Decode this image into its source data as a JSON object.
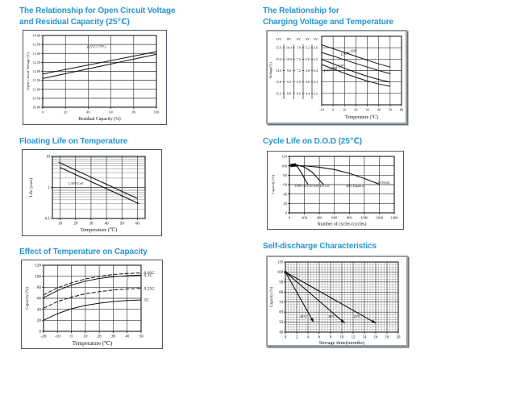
{
  "page": {
    "background": "#ffffff",
    "title_color": "#2695d3"
  },
  "panels": [
    {
      "title_lines": [
        "The Relationship for Open Circuit Voltage",
        "and Residual Capacity (25℃)"
      ]
    },
    {
      "title_lines": [
        "The Relationship for",
        "Charging Voltage and Temperature"
      ]
    },
    {
      "title_lines": [
        "Floating Life on Temperature"
      ]
    },
    {
      "title_lines": [
        "Cycle Life on D.O.D (25℃)"
      ]
    },
    {
      "title_lines": [
        "Effect of Temperature on Capacity"
      ]
    },
    {
      "title_lines": [
        "Self-discharge Characteristics"
      ]
    }
  ],
  "chart_data": [
    {
      "name": "open-circuit-voltage",
      "type": "line",
      "title": "The Relationship for Open Circuit Voltage and Residual Capacity (25℃)",
      "xlabel": "Residual Capacity (%)",
      "ylabel": "Open Circuit Voltage (V)",
      "xlim": [
        0,
        100
      ],
      "ylim": [
        10,
        14
      ],
      "grid": {
        "x_major": 20,
        "y_major": 0.5
      },
      "xticks": [
        {
          "v": 0,
          "l": "0"
        },
        {
          "v": 20,
          "l": "20"
        },
        {
          "v": 40,
          "l": "40"
        },
        {
          "v": 60,
          "l": "60"
        },
        {
          "v": 80,
          "l": "80"
        },
        {
          "v": 100,
          "l": "100"
        }
      ],
      "yticks": [
        {
          "v": 14,
          "l": "14.00"
        },
        {
          "v": 13.5,
          "l": "13.50"
        },
        {
          "v": 13,
          "l": "13.00"
        },
        {
          "v": 12.5,
          "l": "12.50"
        },
        {
          "v": 12,
          "l": "12.00"
        },
        {
          "v": 11.5,
          "l": "11.50"
        },
        {
          "v": 11,
          "l": "11.00"
        },
        {
          "v": 10.5,
          "l": "10.50"
        },
        {
          "v": 10,
          "l": "10.00"
        }
      ],
      "series": [
        {
          "name": "upper-line",
          "x": [
            0,
            100
          ],
          "y": [
            11.85,
            13.1
          ],
          "width": 1
        },
        {
          "name": "lower-line",
          "x": [
            0,
            100
          ],
          "y": [
            11.6,
            12.95
          ],
          "width": 1
        }
      ],
      "annotations": [
        {
          "text": "(25℃/77℉)",
          "x": 47,
          "y": 13.3,
          "size": 4.5
        }
      ]
    },
    {
      "name": "charging-voltage",
      "type": "line",
      "title": "The Relationship for Charging Voltage and Temperature",
      "xlabel": "Temperature (℃)",
      "ylabel": "Voltage(V)",
      "xlim": [
        -10,
        60
      ],
      "ylim": [
        2.1,
        2.7
      ],
      "grid": {
        "x_major": 10,
        "y_major": 0.1
      },
      "xticks": [
        {
          "v": -10,
          "l": "-10"
        },
        {
          "v": 0,
          "l": "0"
        },
        {
          "v": 10,
          "l": "10"
        },
        {
          "v": 20,
          "l": "20"
        },
        {
          "v": 30,
          "l": "30"
        },
        {
          "v": 40,
          "l": "40"
        },
        {
          "v": 50,
          "l": "50"
        },
        {
          "v": 60,
          "l": "60"
        }
      ],
      "yticks": [],
      "voltage_scales": {
        "headers": [
          "12V",
          "8V",
          "6V",
          "4V",
          "2V"
        ],
        "row_values": [
          2.6,
          2.5,
          2.4,
          2.3,
          2.2
        ],
        "rows": [
          [
            "15.6",
            "10.4",
            "7.8",
            "5.2",
            "2.6"
          ],
          [
            "15.0",
            "10.0",
            "7.5",
            "5.0",
            "2.5"
          ],
          [
            "14.4",
            "9.6",
            "7.2",
            "4.8",
            "2.4"
          ],
          [
            "13.8",
            "9.2",
            "6.9",
            "4.6",
            "2.3"
          ],
          [
            "13.2",
            "8.8",
            "6.6",
            "4.4",
            "2.2"
          ]
        ]
      },
      "series": [
        {
          "name": "cycle-use-upper",
          "x": [
            -10,
            0,
            10,
            20,
            30,
            40,
            50
          ],
          "y": [
            2.625,
            2.592,
            2.558,
            2.524,
            2.49,
            2.458,
            2.43
          ],
          "width": 1
        },
        {
          "name": "cycle-use-lower",
          "x": [
            -10,
            0,
            10,
            20,
            30,
            40,
            50
          ],
          "y": [
            2.558,
            2.527,
            2.494,
            2.462,
            2.43,
            2.4,
            2.372
          ],
          "width": 1
        },
        {
          "name": "floating-use-upper",
          "x": [
            -10,
            0,
            10,
            20,
            30,
            40,
            50
          ],
          "y": [
            2.497,
            2.46,
            2.42,
            2.383,
            2.35,
            2.322,
            2.3
          ],
          "width": 1
        },
        {
          "name": "floating-use-lower",
          "x": [
            -10,
            0,
            10,
            20,
            30,
            40,
            50
          ],
          "y": [
            2.452,
            2.415,
            2.376,
            2.34,
            2.308,
            2.282,
            2.262
          ],
          "width": 1
        }
      ],
      "annotations": [
        {
          "text": "Cycle Use",
          "x": 14,
          "y": 2.549,
          "rot": -18,
          "size": 5,
          "italic": true
        },
        {
          "text": "Floating Use",
          "x": 1,
          "y": 2.413,
          "rot": -19,
          "size": 5,
          "italic": true
        }
      ]
    },
    {
      "name": "floating-life",
      "type": "line",
      "title": "Floating Life on Temperature",
      "xlabel": "Temperature (℃)",
      "ylabel": "Life (years)",
      "xlim": [
        5,
        65
      ],
      "ylim": [
        0.1,
        10
      ],
      "yscale": "log",
      "grid": {
        "x_lines": [
          10,
          20,
          30,
          40,
          50,
          60
        ],
        "y_lines": [
          1
        ],
        "y_log_minor": [
          0.2,
          0.3,
          0.4,
          0.5,
          0.6,
          0.7,
          0.8,
          0.9,
          2,
          3,
          4,
          5,
          6,
          7,
          8,
          9
        ]
      },
      "xticks": [
        {
          "v": 10,
          "l": "10"
        },
        {
          "v": 20,
          "l": "20"
        },
        {
          "v": 30,
          "l": "30"
        },
        {
          "v": 40,
          "l": "40"
        },
        {
          "v": 50,
          "l": "50"
        },
        {
          "v": 60,
          "l": "60"
        }
      ],
      "yticks": [
        {
          "v": 10,
          "l": "10"
        },
        {
          "v": 1,
          "l": "1"
        },
        {
          "v": 0.1,
          "l": "0.1"
        }
      ],
      "series": [
        {
          "name": "band-upper",
          "x": [
            9,
            60
          ],
          "y": [
            6.5,
            0.44
          ],
          "width": 1.1
        },
        {
          "name": "band-lower",
          "x": [
            10,
            61
          ],
          "y": [
            4.4,
            0.3
          ],
          "width": 1.1
        }
      ],
      "annotations": [
        {
          "text": "2.30V/Cell",
          "x": 20,
          "y": 1.25,
          "size": 4.2
        }
      ]
    },
    {
      "name": "cycle-life",
      "type": "line",
      "title": "Cycle Life on D.O.D (25℃)",
      "xlabel": "Number of cycles (cycles)",
      "ylabel": "Capacity (%)",
      "xlim": [
        0,
        1400
      ],
      "ylim": [
        0,
        120
      ],
      "grid": {
        "x_major": 200,
        "y_major": 20
      },
      "xticks": [
        {
          "v": 0,
          "l": "0"
        },
        {
          "v": 200,
          "l": "200"
        },
        {
          "v": 400,
          "l": "400"
        },
        {
          "v": 600,
          "l": "600"
        },
        {
          "v": 800,
          "l": "800"
        },
        {
          "v": 1000,
          "l": "1000"
        },
        {
          "v": 1200,
          "l": "1200"
        },
        {
          "v": 1400,
          "l": "1400"
        }
      ],
      "yticks": [
        {
          "v": 0,
          "l": "0"
        },
        {
          "v": 20,
          "l": "20"
        },
        {
          "v": 40,
          "l": "40"
        },
        {
          "v": 60,
          "l": "60"
        },
        {
          "v": 80,
          "l": "80"
        },
        {
          "v": 100,
          "l": "100"
        },
        {
          "v": 120,
          "l": "120"
        }
      ],
      "series": [
        {
          "name": "dod-100",
          "x": [
            0,
            40,
            80,
            120,
            170,
            210,
            250
          ],
          "y": [
            100,
            103,
            102,
            95,
            82,
            70,
            60
          ],
          "width": 1.1
        },
        {
          "name": "dod-50",
          "x": [
            0,
            100,
            200,
            300,
            380,
            455
          ],
          "y": [
            100,
            102,
            97,
            87,
            73,
            60
          ],
          "width": 1.1
        },
        {
          "name": "dod-30",
          "x": [
            0,
            200,
            400,
            600,
            800,
            1000,
            1210
          ],
          "y": [
            100,
            100,
            97,
            92,
            84,
            73,
            60
          ],
          "width": 1.1
        },
        {
          "name": "overlap-band",
          "x": [
            15,
            90
          ],
          "y": [
            100.5,
            102
          ],
          "width": 4
        }
      ],
      "annotations": [
        {
          "text": "100% D.O.D.",
          "x": 195,
          "y": 55,
          "size": 4.2
        },
        {
          "text": "50% D.O.D.",
          "x": 430,
          "y": 55,
          "size": 4.2
        },
        {
          "text": "30% Depth of",
          "x": 880,
          "y": 55,
          "size": 4.2
        },
        {
          "text": "discharge",
          "x": 1255,
          "y": 63,
          "size": 4.2
        }
      ]
    },
    {
      "name": "temperature-capacity",
      "type": "line",
      "title": "Effect of Temperature on Capacity",
      "xlabel": "Temperature (℃)",
      "ylabel": "Capacity (%)",
      "xlim": [
        -20,
        50
      ],
      "ylim": [
        0,
        120
      ],
      "grid": {
        "x_major": 10,
        "y_major": 20
      },
      "xticks": [
        {
          "v": -20,
          "l": "-20"
        },
        {
          "v": -10,
          "l": "-10"
        },
        {
          "v": 0,
          "l": "0"
        },
        {
          "v": 10,
          "l": "10"
        },
        {
          "v": 20,
          "l": "20"
        },
        {
          "v": 30,
          "l": "30"
        },
        {
          "v": 40,
          "l": "40"
        },
        {
          "v": 50,
          "l": "50"
        }
      ],
      "yticks": [
        {
          "v": 0,
          "l": "0"
        },
        {
          "v": 20,
          "l": "20"
        },
        {
          "v": 40,
          "l": "40"
        },
        {
          "v": 60,
          "l": "60"
        },
        {
          "v": 80,
          "l": "80"
        },
        {
          "v": 100,
          "l": "100"
        },
        {
          "v": 120,
          "l": "120"
        }
      ],
      "series": [
        {
          "name": "rate-005c",
          "label": "0.05C",
          "dash": "5 2",
          "x": [
            -20,
            -10,
            0,
            10,
            20,
            30,
            40,
            50
          ],
          "y": [
            66,
            79,
            88,
            95,
            100,
            103,
            105,
            106
          ],
          "width": 1
        },
        {
          "name": "rate-01c",
          "label": "0.1C",
          "x": [
            -20,
            -10,
            0,
            10,
            20,
            30,
            40,
            50
          ],
          "y": [
            61,
            74,
            84,
            91,
            96,
            99,
            101,
            102
          ],
          "width": 1
        },
        {
          "name": "rate-025c",
          "label": "0.25C",
          "dash": "5 2",
          "x": [
            -20,
            -10,
            0,
            10,
            20,
            30,
            40,
            50
          ],
          "y": [
            42,
            54,
            62,
            68,
            72,
            75,
            77,
            78
          ],
          "width": 1
        },
        {
          "name": "rate-1c",
          "label": "1C",
          "x": [
            -20,
            -10,
            0,
            10,
            20,
            30,
            40,
            50
          ],
          "y": [
            20,
            32,
            41,
            47,
            51,
            54,
            56,
            57
          ],
          "width": 1
        }
      ],
      "annotations": []
    },
    {
      "name": "self-discharge",
      "type": "line",
      "title": "Self-discharge Characteristics",
      "xlabel": "Storage time(months)",
      "ylabel": "Capacity (%)",
      "xlim": [
        0,
        20
      ],
      "ylim": [
        40,
        110
      ],
      "grid": {
        "x_major": 2,
        "x_minor": 0.5,
        "y_major": 10,
        "y_minor": 2.5
      },
      "xticks": [
        {
          "v": 0,
          "l": "0"
        },
        {
          "v": 2,
          "l": "2"
        },
        {
          "v": 4,
          "l": "4"
        },
        {
          "v": 6,
          "l": "6"
        },
        {
          "v": 8,
          "l": "8"
        },
        {
          "v": 10,
          "l": "10"
        },
        {
          "v": 12,
          "l": "12"
        },
        {
          "v": 14,
          "l": "14"
        },
        {
          "v": 16,
          "l": "16"
        },
        {
          "v": 18,
          "l": "18"
        },
        {
          "v": 20,
          "l": "20"
        }
      ],
      "yticks": [
        {
          "v": 110,
          "l": "110"
        },
        {
          "v": 100,
          "l": "100"
        },
        {
          "v": 90,
          "l": "90"
        },
        {
          "v": 80,
          "l": "80"
        },
        {
          "v": 70,
          "l": "70"
        },
        {
          "v": 60,
          "l": "60"
        },
        {
          "v": 50,
          "l": "50"
        },
        {
          "v": 40,
          "l": "40"
        }
      ],
      "series": [
        {
          "name": "temp-40c",
          "x": [
            0,
            5
          ],
          "y": [
            100,
            50
          ],
          "width": 1.1,
          "marker": "arrow",
          "start_dot": true
        },
        {
          "name": "temp-30c",
          "x": [
            0,
            10.5
          ],
          "y": [
            100,
            49
          ],
          "width": 1.1,
          "marker": "arrow"
        },
        {
          "name": "temp-25c",
          "x": [
            0,
            16
          ],
          "y": [
            100,
            49
          ],
          "width": 1.1,
          "marker": "arrow"
        }
      ],
      "annotations": [
        {
          "text": "40℃",
          "x": 3.2,
          "y": 54.5,
          "size": 4.2
        },
        {
          "text": "30℃",
          "x": 8.2,
          "y": 54.5,
          "size": 4.2
        },
        {
          "text": "25℃",
          "x": 12.7,
          "y": 54.5,
          "size": 4.2
        }
      ]
    }
  ]
}
